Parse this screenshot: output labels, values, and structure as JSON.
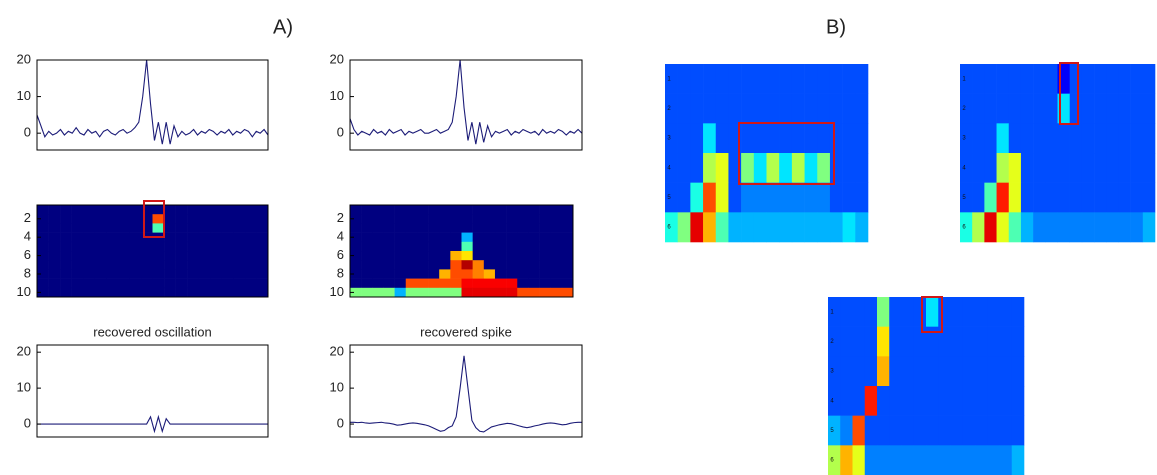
{
  "panel_labels": [
    "A)",
    "B)"
  ],
  "chart_data": [
    {
      "type": "line",
      "color": "#1c1c78",
      "ylim": [
        -4.6,
        20
      ],
      "yticks": [
        0,
        10,
        20
      ],
      "values": [
        5,
        2,
        -1,
        0.5,
        -0.5,
        0,
        1,
        -0.5,
        0.5,
        0,
        1.5,
        0,
        -0.5,
        1,
        0,
        0.5,
        -1,
        0.5,
        1,
        0,
        -0.5,
        0.5,
        1,
        0,
        0.5,
        1.5,
        3,
        10,
        20,
        8,
        -2,
        3,
        -3,
        3,
        -3,
        2,
        -1,
        0.5,
        -0.5,
        0,
        1,
        -0.5,
        0.5,
        0,
        1,
        0.5,
        -0.5,
        0.5,
        0,
        1,
        -0.5,
        0.5,
        0,
        1,
        0.5,
        -1,
        0.5,
        0,
        1,
        -0.5
      ]
    },
    {
      "type": "line",
      "color": "#1c1c78",
      "ylim": [
        -4.6,
        20
      ],
      "yticks": [
        0,
        10,
        20
      ],
      "values": [
        4,
        1,
        -0.5,
        0.5,
        0,
        -0.5,
        1,
        0,
        0.5,
        -0.5,
        1,
        0,
        0.5,
        1,
        -0.5,
        0.5,
        0,
        0.5,
        1,
        0,
        0,
        0.5,
        1,
        0,
        0.5,
        1,
        3,
        10,
        20,
        7,
        -2,
        3,
        -3,
        3,
        -2.5,
        2,
        -1,
        0.5,
        0,
        0.5,
        1,
        -0.5,
        0.5,
        0,
        1,
        0.5,
        0,
        0.5,
        -0.5,
        1,
        0,
        0.5,
        0,
        1,
        0.5,
        -0.5,
        0.5,
        0,
        1,
        0
      ]
    },
    {
      "type": "heatmap",
      "colormap": "jet",
      "clim": [
        0,
        1
      ],
      "ylim": [
        0.5,
        10.5
      ],
      "yreverse": true,
      "yticks": [
        2,
        4,
        6,
        8,
        10
      ],
      "z": [
        [
          0,
          0,
          0,
          0,
          0,
          0,
          0,
          0,
          0,
          0,
          0,
          0,
          0,
          0,
          0,
          0,
          0,
          0,
          0,
          0
        ],
        [
          0,
          0,
          0,
          0,
          0,
          0,
          0,
          0,
          0,
          0,
          0.8,
          0,
          0,
          0,
          0,
          0,
          0,
          0,
          0,
          0
        ],
        [
          0,
          0,
          0,
          0,
          0,
          0,
          0,
          0,
          0,
          0,
          0.45,
          0,
          0,
          0,
          0,
          0,
          0,
          0,
          0,
          0
        ],
        [
          0,
          0,
          0,
          0,
          0,
          0,
          0,
          0,
          0,
          0,
          0,
          0,
          0,
          0,
          0,
          0,
          0,
          0,
          0,
          0
        ],
        [
          0,
          0,
          0,
          0,
          0,
          0,
          0,
          0,
          0,
          0,
          0,
          0,
          0,
          0,
          0,
          0,
          0,
          0,
          0,
          0
        ],
        [
          0,
          0,
          0,
          0,
          0,
          0,
          0,
          0,
          0,
          0,
          0,
          0,
          0,
          0,
          0,
          0,
          0,
          0,
          0,
          0
        ],
        [
          0,
          0,
          0,
          0,
          0,
          0,
          0,
          0,
          0,
          0,
          0,
          0,
          0,
          0,
          0,
          0,
          0,
          0,
          0,
          0
        ],
        [
          0,
          0,
          0,
          0,
          0,
          0,
          0,
          0,
          0,
          0,
          0,
          0,
          0,
          0,
          0,
          0,
          0,
          0,
          0,
          0
        ],
        [
          0,
          0,
          0,
          0,
          0,
          0,
          0,
          0,
          0,
          0,
          0,
          0,
          0,
          0,
          0,
          0,
          0,
          0,
          0,
          0
        ],
        [
          0,
          0,
          0,
          0,
          0,
          0,
          0,
          0,
          0,
          0,
          0,
          0,
          0,
          0,
          0,
          0,
          0,
          0,
          0,
          0
        ]
      ]
    },
    {
      "type": "heatmap",
      "colormap": "jet",
      "clim": [
        0,
        1
      ],
      "ylim": [
        0.5,
        10.5
      ],
      "yreverse": true,
      "yticks": [
        2,
        4,
        6,
        8,
        10
      ],
      "z": [
        [
          0,
          0,
          0,
          0,
          0,
          0,
          0,
          0,
          0,
          0,
          0,
          0,
          0,
          0,
          0,
          0,
          0,
          0,
          0,
          0
        ],
        [
          0,
          0,
          0,
          0,
          0,
          0,
          0,
          0,
          0,
          0,
          0,
          0,
          0,
          0,
          0,
          0,
          0,
          0,
          0,
          0
        ],
        [
          0,
          0,
          0,
          0,
          0,
          0,
          0,
          0,
          0,
          0,
          0,
          0,
          0,
          0,
          0,
          0,
          0,
          0,
          0,
          0
        ],
        [
          0,
          0,
          0,
          0,
          0,
          0,
          0,
          0,
          0,
          0,
          0.3,
          0,
          0,
          0,
          0,
          0,
          0,
          0,
          0,
          0
        ],
        [
          0,
          0,
          0,
          0,
          0,
          0,
          0,
          0,
          0,
          0,
          0.45,
          0,
          0,
          0,
          0,
          0,
          0,
          0,
          0,
          0
        ],
        [
          0,
          0,
          0,
          0,
          0,
          0,
          0,
          0,
          0,
          0.7,
          0.65,
          0,
          0,
          0,
          0,
          0,
          0,
          0,
          0,
          0
        ],
        [
          0,
          0,
          0,
          0,
          0,
          0,
          0,
          0,
          0,
          0.8,
          0.95,
          0.75,
          0,
          0,
          0,
          0,
          0,
          0,
          0,
          0
        ],
        [
          0,
          0,
          0,
          0,
          0,
          0,
          0,
          0,
          0.7,
          0.8,
          0.8,
          0.75,
          0.7,
          0,
          0,
          0,
          0,
          0,
          0,
          0
        ],
        [
          0,
          0,
          0,
          0,
          0,
          0.8,
          0.8,
          0.8,
          0.8,
          0.8,
          0.88,
          0.88,
          0.88,
          0.88,
          0.88,
          0,
          0,
          0,
          0,
          0
        ],
        [
          0.5,
          0.5,
          0.5,
          0.5,
          0.3,
          0.5,
          0.5,
          0.5,
          0.5,
          0.5,
          0.9,
          0.9,
          0.9,
          0.9,
          0.9,
          0.8,
          0.8,
          0.8,
          0.8,
          0.8
        ]
      ]
    },
    {
      "type": "line",
      "title": "recovered oscillation",
      "color": "#1c1c78",
      "ylim": [
        -3.6,
        22
      ],
      "yticks": [
        0,
        10,
        20
      ],
      "values": [
        0,
        0,
        0,
        0,
        0,
        0,
        0,
        0,
        0,
        0,
        0,
        0,
        0,
        0,
        0,
        0,
        0,
        0,
        0,
        0,
        0,
        0,
        0,
        0,
        0,
        0,
        0,
        0,
        0,
        2,
        -2,
        2,
        -2,
        1.5,
        0,
        0,
        0,
        0,
        0,
        0,
        0,
        0,
        0,
        0,
        0,
        0,
        0,
        0,
        0,
        0,
        0,
        0,
        0,
        0,
        0,
        0,
        0,
        0,
        0,
        0
      ]
    },
    {
      "type": "line",
      "title": "recovered spike",
      "color": "#1c1c78",
      "ylim": [
        -3.6,
        22
      ],
      "yticks": [
        0,
        10,
        20
      ],
      "values": [
        0.5,
        0.5,
        0.4,
        0.5,
        0.3,
        0.2,
        0.3,
        0.4,
        0.5,
        0.3,
        0.2,
        0,
        -0.3,
        -0.2,
        0,
        0.2,
        0.3,
        0.2,
        0,
        -0.2,
        -0.5,
        -1,
        -1.5,
        -2,
        -1.8,
        -1,
        -0.5,
        2,
        10,
        19,
        10,
        1,
        -1,
        -2,
        -2.2,
        -1.5,
        -0.8,
        -0.5,
        -0.2,
        0,
        0.2,
        0.1,
        -0.2,
        -0.5,
        -0.8,
        -1,
        -0.8,
        -0.5,
        -0.3,
        0,
        0.2,
        0.3,
        0.2,
        0,
        -0.2,
        -0.1,
        0.2,
        0.4,
        0.5,
        0.5
      ]
    },
    {
      "type": "heatmap",
      "colormap": "jet",
      "clim": [
        0,
        1
      ],
      "ylim": [
        0.5,
        6.5
      ],
      "yreverse": true,
      "yticks": [
        1,
        2,
        3,
        4,
        5,
        6
      ],
      "z": [
        [
          0.2,
          0.2,
          0.2,
          0.2,
          0.2,
          0.2,
          0.2,
          0.2,
          0.2,
          0.2,
          0.2,
          0.2,
          0.2,
          0.2,
          0.2,
          0.2
        ],
        [
          0.2,
          0.2,
          0.2,
          0.2,
          0.2,
          0.2,
          0.2,
          0.2,
          0.2,
          0.2,
          0.2,
          0.2,
          0.2,
          0.2,
          0.2,
          0.2
        ],
        [
          0.2,
          0.2,
          0.2,
          0.35,
          0.2,
          0.2,
          0.2,
          0.2,
          0.2,
          0.2,
          0.2,
          0.2,
          0.2,
          0.2,
          0.2,
          0.2
        ],
        [
          0.2,
          0.2,
          0.2,
          0.55,
          0.6,
          0.2,
          0.5,
          0.35,
          0.55,
          0.35,
          0.55,
          0.35,
          0.5,
          0.2,
          0.2,
          0.2
        ],
        [
          0.2,
          0.2,
          0.4,
          0.8,
          0.6,
          0.2,
          0.25,
          0.25,
          0.25,
          0.25,
          0.25,
          0.25,
          0.25,
          0.2,
          0.2,
          0.2
        ],
        [
          0.4,
          0.5,
          0.9,
          0.7,
          0.45,
          0.3,
          0.3,
          0.3,
          0.3,
          0.3,
          0.3,
          0.3,
          0.3,
          0.3,
          0.35,
          0.3
        ]
      ]
    },
    {
      "type": "heatmap",
      "colormap": "jet",
      "clim": [
        0,
        1
      ],
      "ylim": [
        0.5,
        6.5
      ],
      "yreverse": true,
      "yticks": [
        1,
        2,
        3,
        4,
        5,
        6
      ],
      "z": [
        [
          0.2,
          0.2,
          0.2,
          0.2,
          0.2,
          0.2,
          0.2,
          0.2,
          0.12,
          0.2,
          0.2,
          0.2,
          0.2,
          0.2,
          0.2,
          0.2
        ],
        [
          0.2,
          0.2,
          0.2,
          0.2,
          0.2,
          0.2,
          0.2,
          0.2,
          0.35,
          0.2,
          0.2,
          0.2,
          0.2,
          0.2,
          0.2,
          0.2
        ],
        [
          0.2,
          0.2,
          0.2,
          0.35,
          0.2,
          0.2,
          0.2,
          0.2,
          0.2,
          0.2,
          0.2,
          0.2,
          0.2,
          0.2,
          0.2,
          0.2
        ],
        [
          0.2,
          0.2,
          0.2,
          0.55,
          0.6,
          0.2,
          0.2,
          0.2,
          0.2,
          0.2,
          0.2,
          0.2,
          0.2,
          0.2,
          0.2,
          0.2
        ],
        [
          0.2,
          0.2,
          0.45,
          0.85,
          0.6,
          0.2,
          0.2,
          0.2,
          0.2,
          0.2,
          0.2,
          0.2,
          0.2,
          0.2,
          0.2,
          0.2
        ],
        [
          0.4,
          0.55,
          0.9,
          0.6,
          0.45,
          0.3,
          0.25,
          0.25,
          0.25,
          0.25,
          0.25,
          0.25,
          0.25,
          0.25,
          0.25,
          0.3
        ]
      ]
    },
    {
      "type": "heatmap",
      "colormap": "jet",
      "clim": [
        0,
        1
      ],
      "ylim": [
        0.5,
        6.5
      ],
      "yreverse": true,
      "yticks": [
        1,
        2,
        3,
        4,
        5,
        6
      ],
      "z": [
        [
          0.2,
          0.2,
          0.2,
          0.2,
          0.5,
          0.2,
          0.2,
          0.2,
          0.35,
          0.2,
          0.2,
          0.2,
          0.2,
          0.2,
          0.2,
          0.2
        ],
        [
          0.2,
          0.2,
          0.2,
          0.2,
          0.65,
          0.2,
          0.2,
          0.2,
          0.2,
          0.2,
          0.2,
          0.2,
          0.2,
          0.2,
          0.2,
          0.2
        ],
        [
          0.2,
          0.2,
          0.2,
          0.2,
          0.7,
          0.2,
          0.2,
          0.2,
          0.2,
          0.2,
          0.2,
          0.2,
          0.2,
          0.2,
          0.2,
          0.2
        ],
        [
          0.2,
          0.2,
          0.2,
          0.85,
          0.2,
          0.2,
          0.2,
          0.2,
          0.2,
          0.2,
          0.2,
          0.2,
          0.2,
          0.2,
          0.2,
          0.2
        ],
        [
          0.3,
          0.25,
          0.8,
          0.2,
          0.2,
          0.2,
          0.2,
          0.2,
          0.2,
          0.2,
          0.2,
          0.2,
          0.2,
          0.2,
          0.2,
          0.2
        ],
        [
          0.55,
          0.7,
          0.6,
          0.25,
          0.25,
          0.25,
          0.25,
          0.25,
          0.25,
          0.25,
          0.25,
          0.25,
          0.25,
          0.25,
          0.25,
          0.3
        ]
      ]
    }
  ]
}
